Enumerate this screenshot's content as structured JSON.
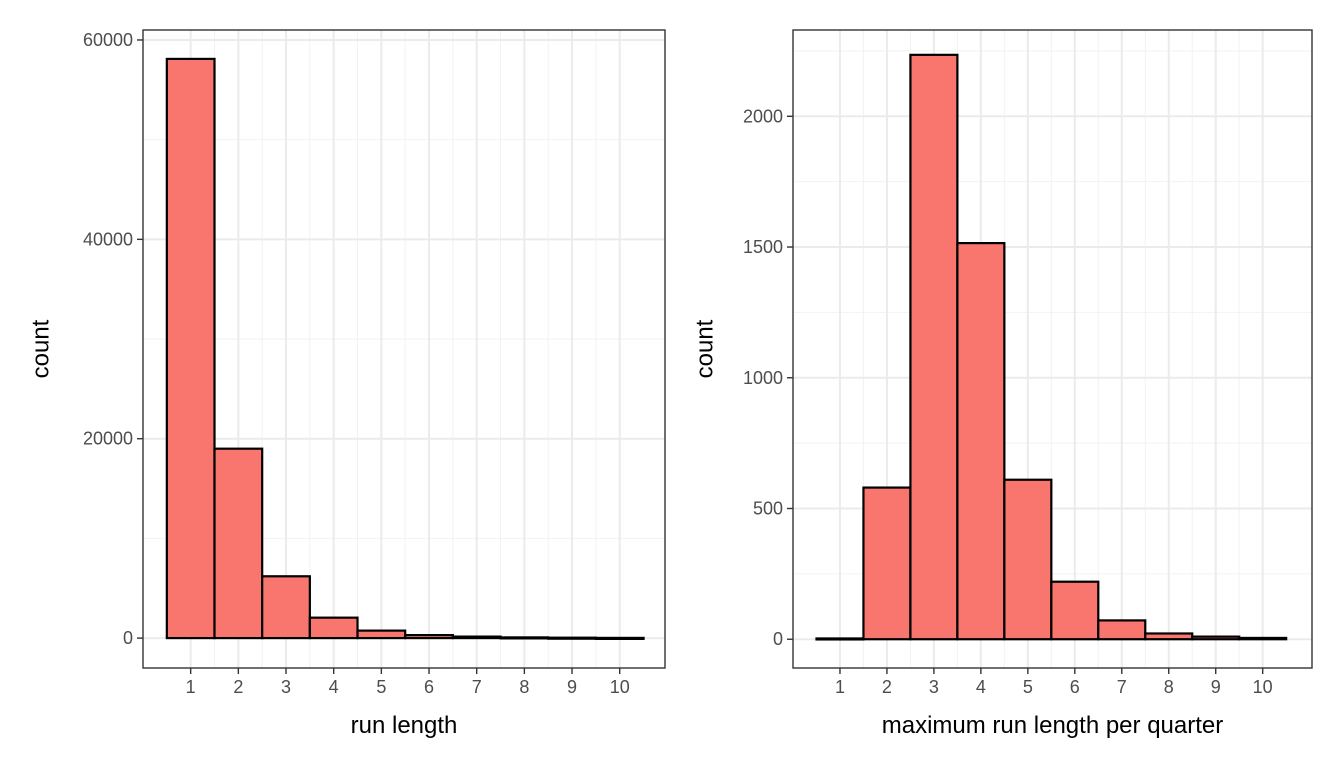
{
  "chart_data": [
    {
      "type": "bar",
      "x": [
        1,
        2,
        3,
        4,
        5,
        6,
        7,
        8,
        9,
        10
      ],
      "values": [
        58100,
        19000,
        6200,
        2050,
        750,
        300,
        150,
        70,
        40,
        20
      ],
      "xlabel": "run length",
      "ylabel": "count",
      "xlim": [
        0,
        10.95
      ],
      "ylim": [
        -3000,
        61000
      ],
      "xticks": [
        "1",
        "2",
        "3",
        "4",
        "5",
        "6",
        "7",
        "8",
        "9",
        "10"
      ],
      "yticks": [
        0,
        20000,
        40000,
        60000
      ],
      "ytick_labels": [
        "0",
        "20000",
        "40000",
        "60000"
      ],
      "fill_color": "#F8766D",
      "outline_color": "#000000",
      "grid": true
    },
    {
      "type": "bar",
      "x": [
        1,
        2,
        3,
        4,
        5,
        6,
        7,
        8,
        9,
        10
      ],
      "values": [
        3,
        580,
        2235,
        1515,
        610,
        220,
        72,
        22,
        10,
        5
      ],
      "xlabel": "maximum run length per quarter",
      "ylabel": "count",
      "xlim": [
        0.0,
        11.05
      ],
      "ylim": [
        -110,
        2330
      ],
      "xticks": [
        "1",
        "2",
        "3",
        "4",
        "5",
        "6",
        "7",
        "8",
        "9",
        "10"
      ],
      "yticks": [
        0,
        500,
        1000,
        1500,
        2000
      ],
      "ytick_labels": [
        "0",
        "500",
        "1000",
        "1500",
        "2000"
      ],
      "fill_color": "#F8766D",
      "outline_color": "#000000",
      "grid": true
    }
  ]
}
